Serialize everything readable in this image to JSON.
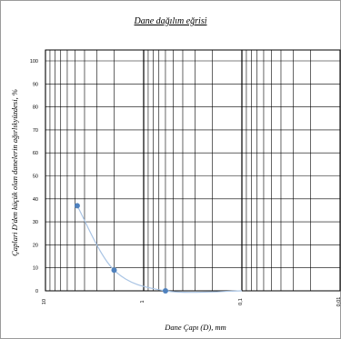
{
  "chart_data": {
    "type": "line",
    "title": "Dane dağılım eğrisi",
    "xlabel": "Dane Çapı (D), mm",
    "ylabel": "Çaplari D'den küçük olan danelerin ağırlıkyüzdesi, %",
    "x_scale": "log",
    "x_reversed": true,
    "xlim": [
      10,
      0.01
    ],
    "ylim": [
      0,
      100
    ],
    "x_tick_labels": [
      {
        "value": 10,
        "label": "10"
      },
      {
        "value": 1,
        "label": "1"
      },
      {
        "value": 0.1,
        "label": "0,1"
      },
      {
        "value": 0.01,
        "label": "0,01"
      }
    ],
    "y_ticks": [
      0,
      10,
      20,
      30,
      40,
      50,
      60,
      70,
      80,
      90,
      100
    ],
    "grid": true,
    "series": [
      {
        "color": "#4f81bd",
        "points": [
          {
            "x": 4.75,
            "y": 37
          },
          {
            "x": 2.0,
            "y": 9
          },
          {
            "x": 0.6,
            "y": 0
          },
          {
            "x": 0.1,
            "y": 0
          }
        ]
      }
    ]
  }
}
